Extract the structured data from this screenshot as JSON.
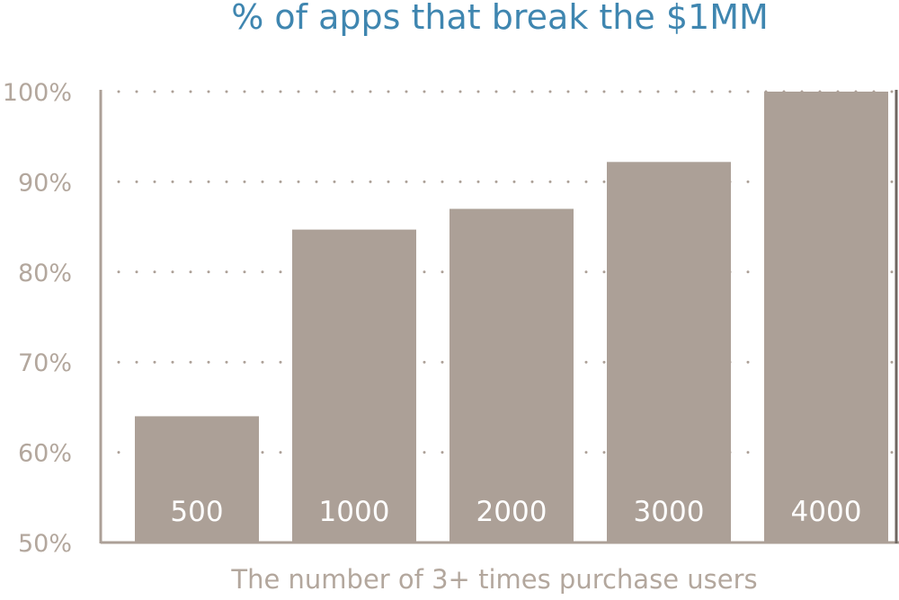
{
  "chart_data": {
    "type": "bar",
    "title": "% of apps that break the $1MM",
    "xlabel": "The number of 3+ times purchase users",
    "ylabel": "",
    "categories": [
      "500",
      "1000",
      "2000",
      "3000",
      "4000"
    ],
    "values": [
      64,
      84.7,
      87,
      92.2,
      100
    ],
    "ylim": [
      50,
      100
    ],
    "yticks": [
      50,
      60,
      70,
      80,
      90,
      100
    ],
    "ytick_labels": [
      "50%",
      "60%",
      "70%",
      "80%",
      "90%",
      "100%"
    ],
    "grid": true,
    "legend": "none",
    "colors": {
      "bar": "#aca097",
      "axis": "#aca097",
      "grid": "#aca097",
      "title": "#3f86b0",
      "tick_text": "#b3a79d",
      "bar_label": "#ffffff"
    }
  }
}
